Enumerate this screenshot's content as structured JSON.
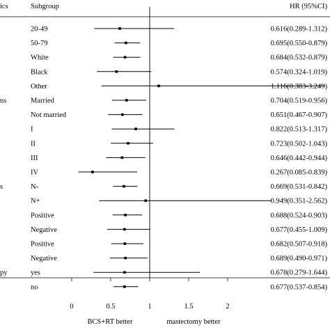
{
  "chart_data": {
    "type": "forest",
    "header": {
      "characteristics": "ics",
      "subgroup": "Subgroup",
      "hr": "HR (95%CI)"
    },
    "left_labels": [
      {
        "row": 1,
        "text": ""
      },
      {
        "row": 5,
        "text": "ns"
      },
      {
        "row": 11,
        "text": "s"
      },
      {
        "row": 17,
        "text": "py"
      }
    ],
    "rows": [
      {
        "subgroup": "20-49",
        "hr": 0.616,
        "lo": 0.289,
        "hi": 1.312,
        "label": "0.616(0.289-1.312)"
      },
      {
        "subgroup": "50-79",
        "hr": 0.695,
        "lo": 0.55,
        "hi": 0.879,
        "label": "0.695(0.550-0.879)"
      },
      {
        "subgroup": "White",
        "hr": 0.684,
        "lo": 0.532,
        "hi": 0.879,
        "label": "0.684(0.532-0.879)"
      },
      {
        "subgroup": "Black",
        "hr": 0.574,
        "lo": 0.324,
        "hi": 1.019,
        "label": "0.574(0.324-1.019)"
      },
      {
        "subgroup": "Other",
        "hr": 1.116,
        "lo": 0.383,
        "hi": 3.249,
        "label": "1.116(0.383-3.249)"
      },
      {
        "subgroup": "Married",
        "hr": 0.704,
        "lo": 0.519,
        "hi": 0.956,
        "label": "0.704(0.519-0.956)"
      },
      {
        "subgroup": "Not married",
        "hr": 0.651,
        "lo": 0.467,
        "hi": 0.907,
        "label": "0.651(0.467-0.907)"
      },
      {
        "subgroup": "I",
        "hr": 0.822,
        "lo": 0.513,
        "hi": 1.317,
        "label": "0.822(0.513-1.317)"
      },
      {
        "subgroup": "II",
        "hr": 0.723,
        "lo": 0.502,
        "hi": 1.043,
        "label": "0.723(0.502-1.043)"
      },
      {
        "subgroup": "III",
        "hr": 0.646,
        "lo": 0.442,
        "hi": 0.944,
        "label": "0.646(0.442-0.944)"
      },
      {
        "subgroup": "IV",
        "hr": 0.267,
        "lo": 0.085,
        "hi": 0.839,
        "label": "0.267(0.085-0.839)"
      },
      {
        "subgroup": "N-",
        "hr": 0.669,
        "lo": 0.531,
        "hi": 0.842,
        "label": "0.669(0.531-0.842)"
      },
      {
        "subgroup": "N+",
        "hr": 0.949,
        "lo": 0.351,
        "hi": 2.562,
        "label": "0.949(0.351-2.562)"
      },
      {
        "subgroup": "Positive",
        "hr": 0.688,
        "lo": 0.524,
        "hi": 0.903,
        "label": "0.688(0.524-0.903)"
      },
      {
        "subgroup": "Negative",
        "hr": 0.677,
        "lo": 0.455,
        "hi": 1.009,
        "label": "0.677(0.455-1.009)"
      },
      {
        "subgroup": "Positive",
        "hr": 0.682,
        "lo": 0.507,
        "hi": 0.918,
        "label": "0.682(0.507-0.918)"
      },
      {
        "subgroup": "Negative",
        "hr": 0.689,
        "lo": 0.49,
        "hi": 0.971,
        "label": "0.689(0.490-0.971)"
      },
      {
        "subgroup": "yes",
        "hr": 0.678,
        "lo": 0.279,
        "hi": 1.644,
        "label": "0.678(0.279-1.644)"
      },
      {
        "subgroup": "no",
        "hr": 0.677,
        "lo": 0.537,
        "hi": 0.854,
        "label": "0.677(0.537-0.854)"
      }
    ],
    "x_axis": {
      "ticks": [
        0,
        0.5,
        1,
        1.5,
        2
      ],
      "tick_labels": [
        "0",
        "0.5",
        "1",
        "1.5",
        "2"
      ],
      "reference_line": 1,
      "range": [
        -0.1,
        2.4
      ]
    },
    "footer": {
      "left": "BCS+RT better",
      "right": "mastectomy better"
    },
    "colors": {
      "ink": "#000000",
      "background": "#ffffff"
    }
  }
}
